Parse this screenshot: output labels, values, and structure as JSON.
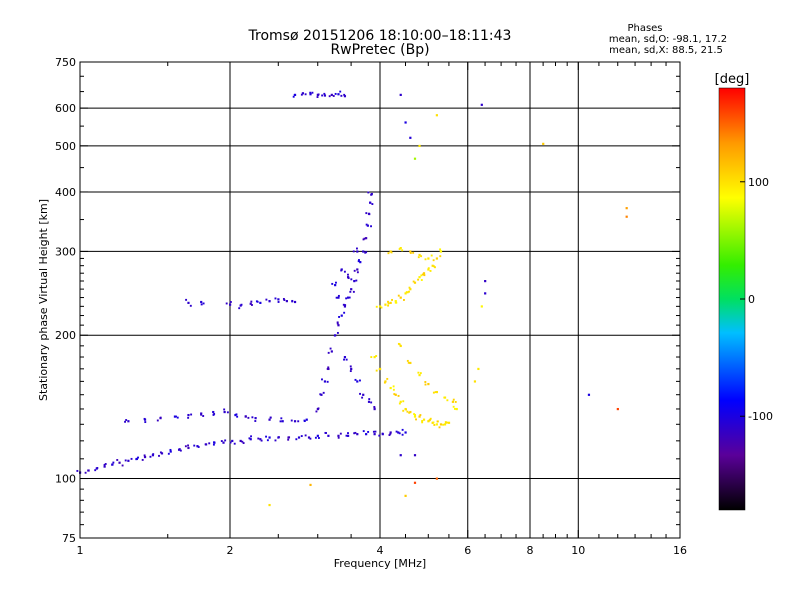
{
  "chart_data": {
    "type": "scatter",
    "title": "Tromsø 20151206 18:10:00–18:11:43",
    "subtitle": "RwPretec (Bp)",
    "xlabel": "Frequency [MHz]",
    "ylabel": "Stationary phase Virtual Height [km]",
    "x_scale": "log",
    "y_scale": "log",
    "xlim": [
      1,
      16
    ],
    "ylim": [
      75,
      750
    ],
    "x_ticks": [
      1,
      2,
      4,
      6,
      8,
      10,
      16
    ],
    "x_tick_labels": [
      "1",
      "2",
      "4",
      "6",
      "8",
      "10",
      "16"
    ],
    "x_gridlines": [
      2,
      4,
      6,
      8,
      10
    ],
    "y_ticks": [
      75,
      100,
      200,
      300,
      400,
      500,
      600,
      750
    ],
    "y_tick_labels": [
      "75",
      "100",
      "200",
      "300",
      "400",
      "500",
      "600",
      "750"
    ],
    "y_gridlines": [
      100,
      200,
      300,
      400,
      500,
      600
    ],
    "grid": true,
    "info": {
      "heading": "Phases",
      "line1": "mean, sd,O: -98.1, 17.2",
      "line2": "mean, sd,X:  88.5, 21.5"
    },
    "colorbar": {
      "label": "[deg]",
      "range": [
        -180,
        180
      ],
      "ticks": [
        100,
        0,
        -100
      ],
      "tick_labels": [
        "100",
        "0",
        "-100"
      ],
      "colormap": [
        "#000000",
        "#5a0099",
        "#0000ff",
        "#00bfff",
        "#00e060",
        "#33ee00",
        "#ffff00",
        "#ff9900",
        "#ff0000"
      ]
    },
    "series": [
      {
        "role": "o_trace_low",
        "points": [
          [
            1.0,
            103,
            -110
          ],
          [
            1.04,
            104,
            -115
          ],
          [
            1.08,
            105,
            -108
          ],
          [
            1.12,
            106,
            -112
          ],
          [
            1.16,
            107,
            -105
          ],
          [
            1.2,
            108,
            -118
          ],
          [
            1.25,
            109,
            -110
          ],
          [
            1.3,
            110,
            -100
          ],
          [
            1.35,
            111,
            -115
          ],
          [
            1.4,
            112,
            -108
          ],
          [
            1.46,
            113,
            -112
          ],
          [
            1.52,
            114,
            -100
          ],
          [
            1.58,
            115,
            -110
          ],
          [
            1.65,
            116,
            -118
          ],
          [
            1.72,
            117,
            -105
          ],
          [
            1.79,
            118,
            -112
          ],
          [
            1.86,
            119,
            -100
          ],
          [
            1.94,
            119,
            -110
          ],
          [
            2.02,
            120,
            -108
          ],
          [
            2.1,
            120,
            -115
          ],
          [
            2.2,
            121,
            -105
          ],
          [
            2.3,
            121,
            -112
          ],
          [
            2.4,
            122,
            -100
          ],
          [
            2.5,
            122,
            -110
          ],
          [
            2.62,
            122,
            -118
          ],
          [
            2.75,
            122,
            -105
          ],
          [
            2.88,
            122,
            -112
          ],
          [
            3.0,
            123,
            -100
          ],
          [
            3.15,
            123,
            -108
          ],
          [
            3.3,
            123,
            -115
          ],
          [
            3.45,
            123,
            -105
          ],
          [
            3.6,
            124,
            -112
          ],
          [
            3.75,
            124,
            -100
          ],
          [
            3.9,
            124,
            -110
          ],
          [
            4.05,
            124,
            -108
          ],
          [
            4.2,
            125,
            -115
          ],
          [
            4.35,
            125,
            -105
          ],
          [
            4.5,
            125,
            -100
          ]
        ]
      },
      {
        "role": "o_trace_upper",
        "points": [
          [
            1.25,
            132,
            -110
          ],
          [
            1.35,
            133,
            -105
          ],
          [
            1.45,
            134,
            -115
          ],
          [
            1.55,
            135,
            -100
          ],
          [
            1.65,
            136,
            -108
          ],
          [
            1.75,
            137,
            -112
          ],
          [
            1.85,
            138,
            -105
          ],
          [
            1.95,
            138,
            -110
          ],
          [
            2.05,
            136,
            -100
          ],
          [
            2.15,
            135,
            -115
          ],
          [
            2.25,
            134,
            -108
          ],
          [
            2.4,
            133,
            -112
          ],
          [
            2.55,
            132,
            -105
          ],
          [
            2.7,
            132,
            -110
          ],
          [
            2.85,
            133,
            -100
          ]
        ]
      },
      {
        "role": "o_rise",
        "points": [
          [
            3.0,
            140,
            -115
          ],
          [
            3.05,
            150,
            -110
          ],
          [
            3.1,
            160,
            -105
          ],
          [
            3.15,
            170,
            -118
          ],
          [
            3.2,
            185,
            -112
          ],
          [
            3.25,
            200,
            -108
          ],
          [
            3.3,
            210,
            -115
          ],
          [
            3.35,
            220,
            -100
          ],
          [
            3.4,
            230,
            -110
          ],
          [
            3.45,
            240,
            -105
          ],
          [
            3.5,
            250,
            -112
          ],
          [
            3.55,
            260,
            -108
          ],
          [
            3.6,
            275,
            -115
          ],
          [
            3.65,
            285,
            -100
          ],
          [
            3.7,
            300,
            -110
          ],
          [
            3.75,
            320,
            -118
          ],
          [
            3.78,
            340,
            -105
          ],
          [
            3.8,
            360,
            -112
          ],
          [
            3.82,
            380,
            -108
          ],
          [
            3.84,
            395,
            -110
          ],
          [
            3.4,
            180,
            -105
          ],
          [
            3.5,
            170,
            -112
          ],
          [
            3.6,
            160,
            -100
          ],
          [
            3.7,
            150,
            -110
          ],
          [
            3.8,
            145,
            -108
          ],
          [
            3.9,
            140,
            -115
          ],
          [
            3.3,
            240,
            -105
          ],
          [
            3.45,
            265,
            -112
          ],
          [
            3.6,
            300,
            -110
          ],
          [
            3.25,
            255,
            -100
          ],
          [
            3.35,
            275,
            -108
          ]
        ]
      },
      {
        "role": "o_plateau_low",
        "points": [
          [
            1.65,
            234,
            -110
          ],
          [
            1.75,
            235,
            -105
          ],
          [
            2.0,
            232,
            -112
          ],
          [
            2.1,
            231,
            -108
          ],
          [
            2.2,
            233,
            -115
          ],
          [
            2.3,
            234,
            -100
          ],
          [
            2.4,
            236,
            -110
          ],
          [
            2.5,
            238,
            -105
          ],
          [
            2.6,
            236,
            -112
          ],
          [
            2.7,
            235,
            -108
          ]
        ]
      },
      {
        "role": "o_top_fragment",
        "points": [
          [
            2.7,
            640,
            -100
          ],
          [
            2.8,
            645,
            -110
          ],
          [
            2.9,
            642,
            -105
          ],
          [
            3.0,
            640,
            -112
          ],
          [
            3.1,
            638,
            -108
          ],
          [
            3.2,
            640,
            -115
          ],
          [
            3.3,
            642,
            -100
          ],
          [
            3.4,
            636,
            -110
          ]
        ]
      },
      {
        "role": "x_cluster",
        "points": [
          [
            3.9,
            180,
            95
          ],
          [
            4.0,
            170,
            100
          ],
          [
            4.1,
            160,
            105
          ],
          [
            4.2,
            155,
            90
          ],
          [
            4.3,
            150,
            110
          ],
          [
            4.4,
            145,
            95
          ],
          [
            4.5,
            140,
            100
          ],
          [
            4.6,
            138,
            105
          ],
          [
            4.7,
            135,
            90
          ],
          [
            4.8,
            135,
            110
          ],
          [
            4.9,
            133,
            95
          ],
          [
            5.0,
            132,
            100
          ],
          [
            5.1,
            131,
            105
          ],
          [
            5.2,
            130,
            90
          ],
          [
            5.3,
            130,
            110
          ],
          [
            5.4,
            130,
            95
          ],
          [
            5.5,
            131,
            100
          ],
          [
            4.0,
            230,
            95
          ],
          [
            4.1,
            232,
            100
          ],
          [
            4.2,
            234,
            105
          ],
          [
            4.3,
            236,
            90
          ],
          [
            4.4,
            240,
            110
          ],
          [
            4.5,
            245,
            95
          ],
          [
            4.6,
            250,
            100
          ],
          [
            4.7,
            258,
            105
          ],
          [
            4.8,
            265,
            90
          ],
          [
            4.9,
            270,
            110
          ],
          [
            5.0,
            275,
            95
          ],
          [
            5.1,
            280,
            100
          ],
          [
            5.2,
            290,
            105
          ],
          [
            5.3,
            300,
            90
          ],
          [
            4.4,
            190,
            100
          ],
          [
            4.6,
            175,
            105
          ],
          [
            4.8,
            165,
            95
          ],
          [
            5.0,
            158,
            110
          ],
          [
            5.2,
            152,
            100
          ],
          [
            5.4,
            148,
            95
          ],
          [
            5.6,
            145,
            105
          ],
          [
            5.7,
            140,
            90
          ],
          [
            4.2,
            300,
            105
          ],
          [
            4.4,
            305,
            95
          ],
          [
            4.6,
            300,
            110
          ],
          [
            4.8,
            295,
            100
          ],
          [
            5.0,
            290,
            95
          ]
        ]
      },
      {
        "role": "isolated",
        "points": [
          [
            4.4,
            640,
            -110
          ],
          [
            4.5,
            560,
            -100
          ],
          [
            4.6,
            520,
            -105
          ],
          [
            4.8,
            500,
            95
          ],
          [
            4.7,
            470,
            60
          ],
          [
            5.2,
            580,
            100
          ],
          [
            6.4,
            610,
            -110
          ],
          [
            6.5,
            260,
            -112
          ],
          [
            6.5,
            245,
            -108
          ],
          [
            8.5,
            505,
            110
          ],
          [
            10.5,
            150,
            -100
          ],
          [
            12.0,
            140,
            160
          ],
          [
            12.5,
            370,
            130
          ],
          [
            12.5,
            355,
            140
          ],
          [
            2.4,
            88,
            100
          ],
          [
            2.9,
            97,
            120
          ],
          [
            4.5,
            92,
            110
          ],
          [
            4.7,
            98,
            160
          ],
          [
            5.2,
            100,
            150
          ],
          [
            4.4,
            112,
            -110
          ],
          [
            4.7,
            112,
            -112
          ],
          [
            6.4,
            230,
            90
          ],
          [
            6.3,
            170,
            95
          ],
          [
            6.2,
            160,
            100
          ]
        ]
      }
    ]
  }
}
